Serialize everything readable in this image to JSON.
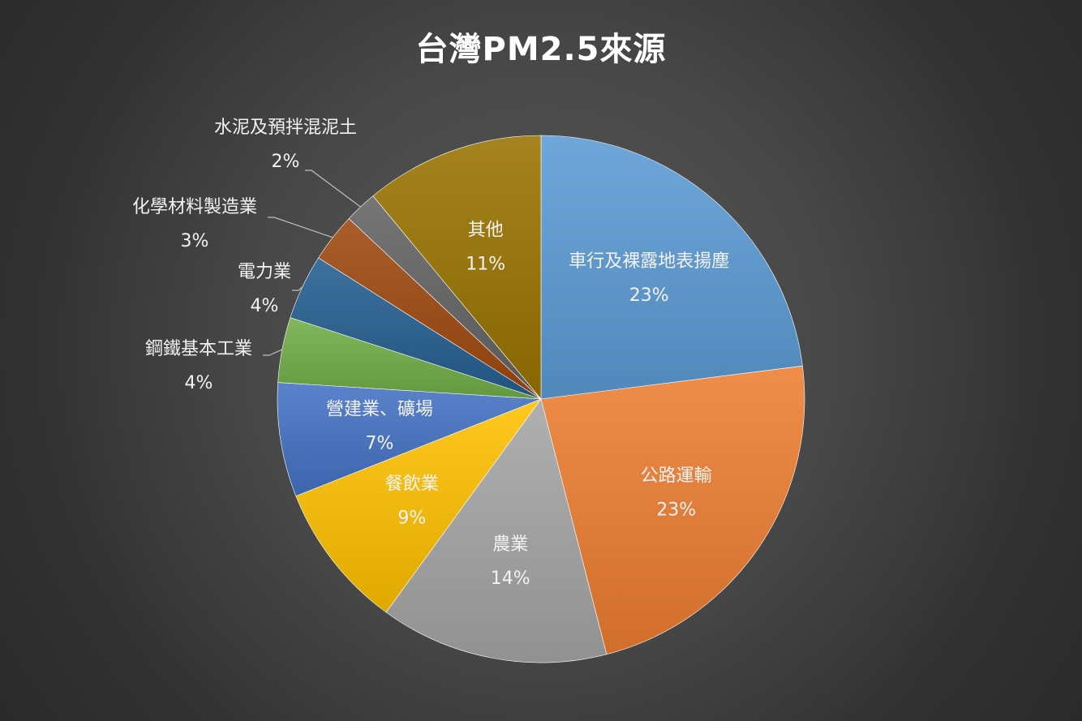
{
  "chart_data": {
    "type": "pie",
    "title": "台灣PM2.5來源",
    "slices": [
      {
        "label": "車行及裸露地表揚塵",
        "value": 23,
        "display": "23%",
        "color": "#5b9bd5",
        "label_position": "inside"
      },
      {
        "label": "公路運輸",
        "value": 23,
        "display": "23%",
        "color": "#ed7d31",
        "label_position": "inside"
      },
      {
        "label": "農業",
        "value": 14,
        "display": "14%",
        "color": "#a5a5a5",
        "label_position": "inside"
      },
      {
        "label": "餐飲業",
        "value": 9,
        "display": "9%",
        "color": "#ffc000",
        "label_position": "inside"
      },
      {
        "label": "營建業、礦場",
        "value": 7,
        "display": "7%",
        "color": "#4472c4",
        "label_position": "inside"
      },
      {
        "label": "鋼鐵基本工業",
        "value": 4,
        "display": "4%",
        "color": "#70ad47",
        "label_position": "outside"
      },
      {
        "label": "電力業",
        "value": 4,
        "display": "4%",
        "color": "#255e91",
        "label_position": "outside"
      },
      {
        "label": "化學材料製造業",
        "value": 3,
        "display": "3%",
        "color": "#9e480e",
        "label_position": "outside"
      },
      {
        "label": "水泥及預拌混泥土",
        "value": 2,
        "display": "2%",
        "color": "#636363",
        "label_position": "outside"
      },
      {
        "label": "其他",
        "value": 11,
        "display": "11%",
        "color": "#997300",
        "label_position": "inside"
      }
    ],
    "legend": "none",
    "start_angle": "12 o'clock, clockwise"
  }
}
